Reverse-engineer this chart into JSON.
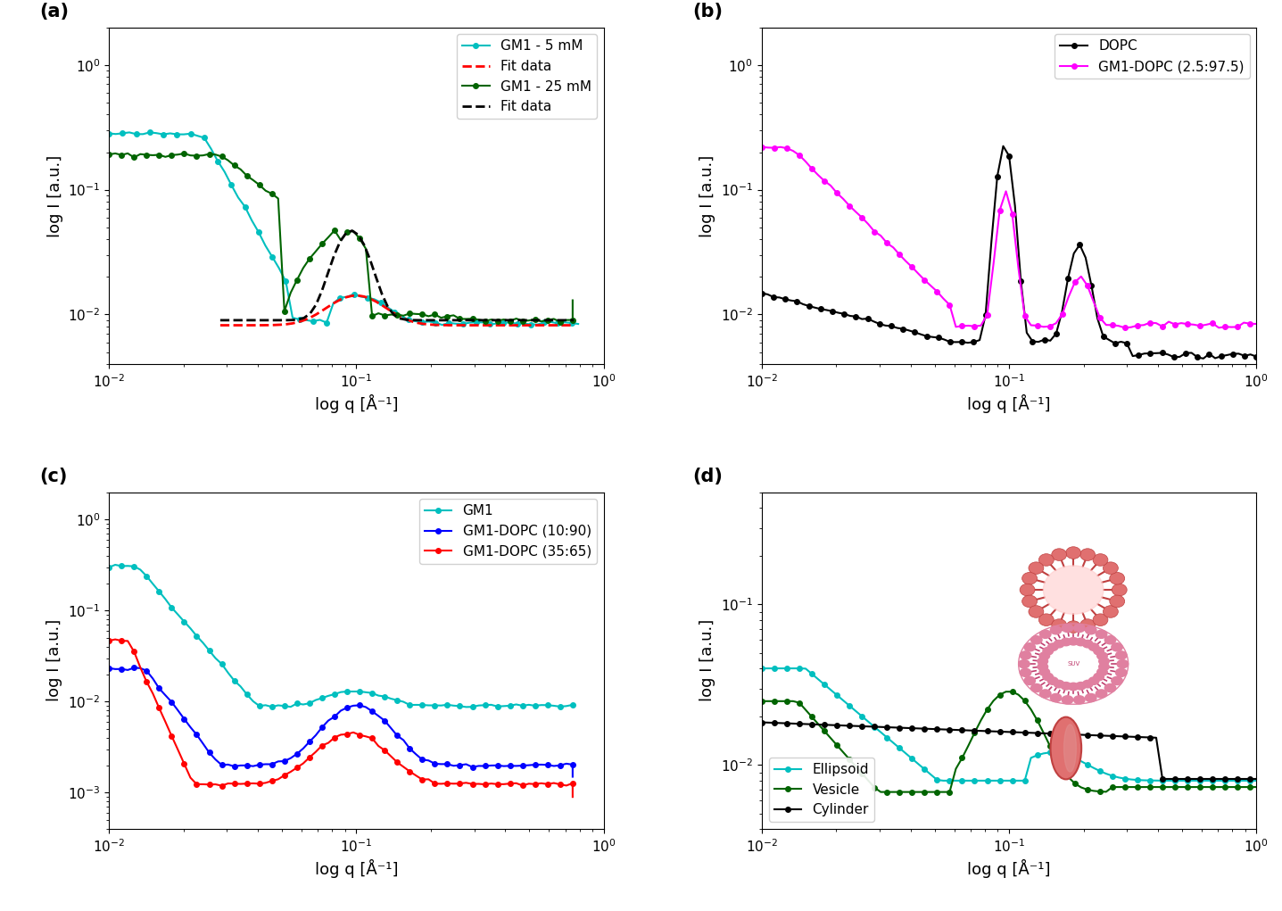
{
  "fig_width": 14.37,
  "fig_height": 10.21,
  "panel_labels": [
    "(a)",
    "(b)",
    "(c)",
    "(d)"
  ],
  "xlabel": "log q [Å⁻¹]",
  "ylabel": "log I [a.u.]",
  "panel_a": {
    "colors": [
      "#00BFBF",
      "#FF0000",
      "#006400",
      "#000000"
    ],
    "labels": [
      "GM1 - 5 mM",
      "Fit data",
      "GM1 - 25 mM",
      "Fit data"
    ],
    "linestyles": [
      "-",
      "--",
      "-",
      "--"
    ],
    "markers": [
      "o",
      "",
      "o",
      ""
    ],
    "ylim": [
      0.004,
      2.0
    ]
  },
  "panel_b": {
    "colors": [
      "#000000",
      "#FF00FF"
    ],
    "labels": [
      "DOPC",
      "GM1-DOPC (2.5:97.5)"
    ],
    "ylim": [
      0.004,
      2.0
    ]
  },
  "panel_c": {
    "colors": [
      "#00BFBF",
      "#0000FF",
      "#FF0000"
    ],
    "labels": [
      "GM1",
      "GM1-DOPC (10:90)",
      "GM1-DOPC (35:65)"
    ],
    "ylim": [
      0.0004,
      2.0
    ]
  },
  "panel_d": {
    "colors": [
      "#00BFBF",
      "#006400",
      "#000000"
    ],
    "labels": [
      "Ellipsoid",
      "Vesicle",
      "Cylinder"
    ],
    "ylim": [
      0.004,
      0.5
    ]
  },
  "xlim": [
    0.01,
    1.0
  ],
  "fontsize_label": 13,
  "fontsize_tick": 11,
  "fontsize_legend": 11,
  "fontsize_panel": 15,
  "markersize": 4,
  "linewidth": 1.5
}
